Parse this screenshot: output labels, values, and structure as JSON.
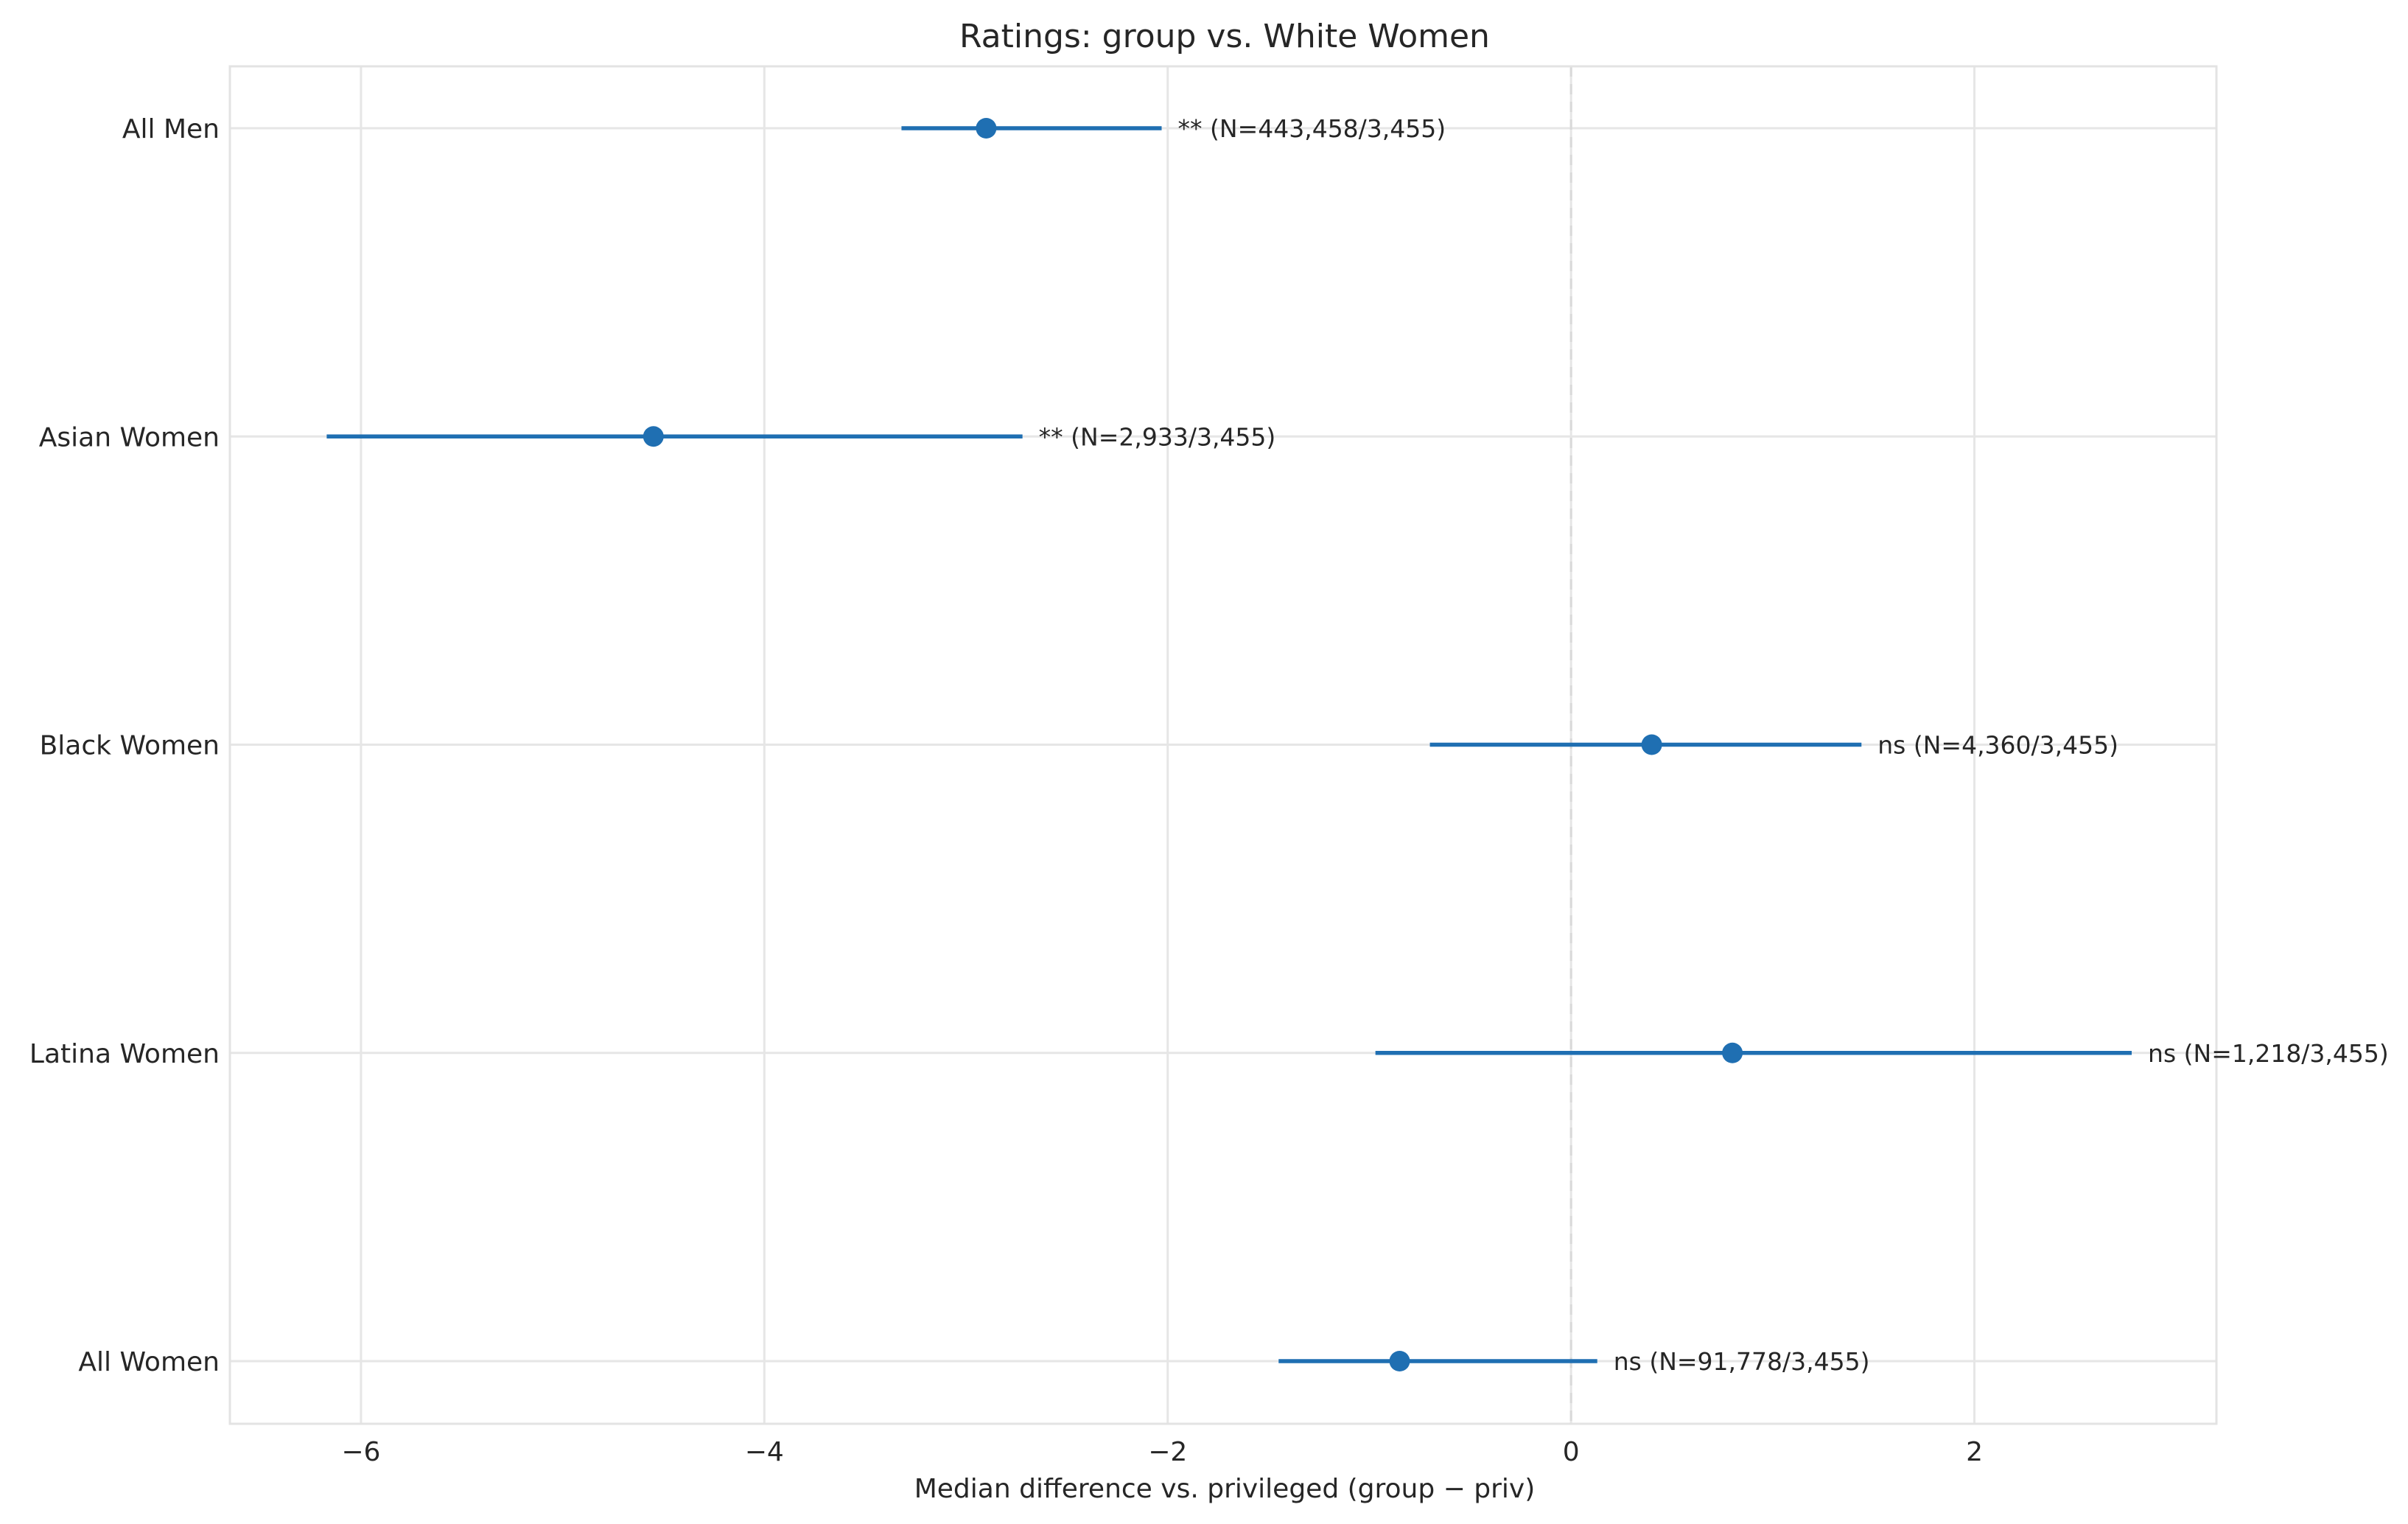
{
  "chart_data": {
    "type": "errorbar",
    "title": "Ratings: group vs. White Women",
    "xlabel": "Median difference vs. privileged (group − priv)",
    "ylabel": "",
    "xlim": [
      -6.65,
      3.2
    ],
    "xticks": [
      -6,
      -4,
      -2,
      0,
      2
    ],
    "xtick_labels": [
      "−6",
      "−4",
      "−2",
      "0",
      "2"
    ],
    "grid": true,
    "reference_line": 0,
    "colors": {
      "series": "#1f6fb2",
      "grid": "#e6e6e6",
      "text": "#262626"
    },
    "categories": [
      "All Men",
      "Asian Women",
      "Black Women",
      "Latina Women",
      "All Women"
    ],
    "points": [
      {
        "label": "All Men",
        "estimate": -2.9,
        "ci_low": -3.32,
        "ci_high": -2.03,
        "annotation": "**  (N=443,458/3,455)"
      },
      {
        "label": "Asian Women",
        "estimate": -4.55,
        "ci_low": -6.17,
        "ci_high": -2.72,
        "annotation": "**  (N=2,933/3,455)"
      },
      {
        "label": "Black Women",
        "estimate": 0.4,
        "ci_low": -0.7,
        "ci_high": 1.44,
        "annotation": "ns  (N=4,360/3,455)"
      },
      {
        "label": "Latina Women",
        "estimate": 0.8,
        "ci_low": -0.97,
        "ci_high": 2.78,
        "annotation": "ns  (N=1,218/3,455)"
      },
      {
        "label": "All Women",
        "estimate": -0.85,
        "ci_low": -1.45,
        "ci_high": 0.13,
        "annotation": "ns  (N=91,778/3,455)"
      }
    ]
  }
}
